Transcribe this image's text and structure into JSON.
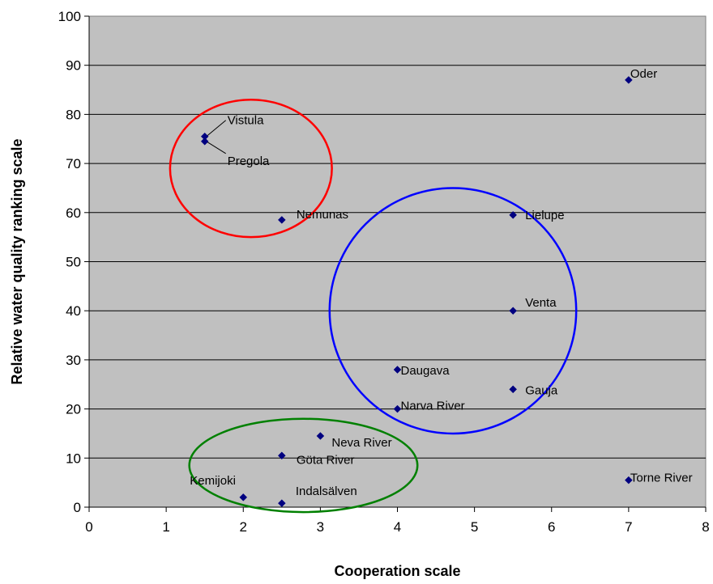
{
  "chart_data": {
    "type": "scatter",
    "title": "",
    "xlabel": "Cooperation scale",
    "ylabel": "Relative water quality ranking scale",
    "xlim": [
      0,
      8
    ],
    "ylim": [
      0,
      100
    ],
    "xticks": [
      "0",
      "1",
      "2",
      "3",
      "4",
      "5",
      "6",
      "7",
      "8"
    ],
    "yticks": [
      "0",
      "10",
      "20",
      "30",
      "40",
      "50",
      "60",
      "70",
      "80",
      "90",
      "100"
    ],
    "grid": "horizontal",
    "plot_background": "#c0c0c0",
    "marker_color": "#000080",
    "points": [
      {
        "label": "Oder",
        "x": 7.0,
        "y": 87
      },
      {
        "label": "Vistula",
        "x": 1.5,
        "y": 75.5
      },
      {
        "label": "Pregola",
        "x": 1.5,
        "y": 74.5
      },
      {
        "label": "Nemunas",
        "x": 2.5,
        "y": 58.5
      },
      {
        "label": "Lielupe",
        "x": 5.5,
        "y": 59.5
      },
      {
        "label": "Venta",
        "x": 5.5,
        "y": 40
      },
      {
        "label": "Daugava",
        "x": 4.0,
        "y": 28
      },
      {
        "label": "Gauja",
        "x": 5.5,
        "y": 24
      },
      {
        "label": "Narva River",
        "x": 4.0,
        "y": 20
      },
      {
        "label": "Neva River",
        "x": 3.0,
        "y": 14.5
      },
      {
        "label": "Göta River",
        "x": 2.5,
        "y": 10.5
      },
      {
        "label": "Kemijoki",
        "x": 2.0,
        "y": 2
      },
      {
        "label": "Indalsälven",
        "x": 2.5,
        "y": 0.8
      },
      {
        "label": "Torne River",
        "x": 7.0,
        "y": 5.5
      }
    ],
    "annotations": [
      {
        "shape": "ellipse",
        "color": "#ff0000",
        "cx": 2.1,
        "cy": 69,
        "rx": 1.05,
        "ry": 14
      },
      {
        "shape": "ellipse",
        "color": "#0000ff",
        "cx": 4.72,
        "cy": 40,
        "rx": 1.6,
        "ry": 25
      },
      {
        "shape": "ellipse",
        "color": "#008000",
        "cx": 2.78,
        "cy": 8.5,
        "rx": 1.48,
        "ry": 9.5
      }
    ]
  }
}
